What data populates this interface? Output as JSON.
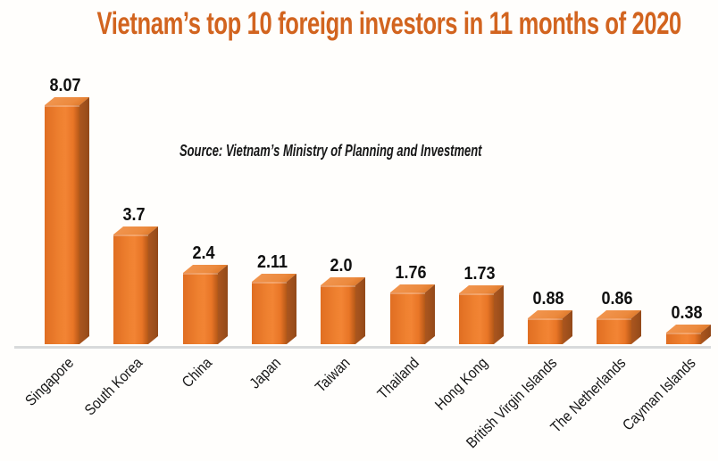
{
  "title": "Vietnam’s top 10 foreign investors in 11 months of 2020",
  "source_note": "Source: Vietnam’s Ministry of Planning and Investment",
  "colors": {
    "title": "#d2641f",
    "bar_front": "#ee7d2b",
    "bar_front_highlight": "#f28434",
    "bar_front_shadow": "#c05e1b",
    "bar_side": "#9d4f1b",
    "bar_top": "#ee8f44",
    "value_label": "#101010",
    "category_label": "#161616",
    "axis_line": "#d8dadb",
    "background": "#fffefc"
  },
  "chart_data": {
    "type": "bar",
    "style": "3d-column",
    "title": "Vietnam’s top 10 foreign investors in 11 months of 2020",
    "source": "Source: Vietnam’s Ministry of Planning and Investment",
    "categories": [
      "Singapore",
      "South Korea",
      "China",
      "Japan",
      "Taiwan",
      "Thailand",
      "Hong Kong",
      "British Virgin Islands",
      "The Netherlands",
      "Cayman Islands"
    ],
    "values": [
      8.07,
      3.7,
      2.4,
      2.11,
      2.0,
      1.76,
      1.73,
      0.88,
      0.86,
      0.38
    ],
    "value_labels": [
      "8.07",
      "3.7",
      "2.4",
      "2.11",
      "2.0",
      "1.76",
      "1.73",
      "0.88",
      "0.86",
      "0.38"
    ],
    "xlabel": "",
    "ylabel": "",
    "ylim": [
      0,
      8.5
    ],
    "grid": false,
    "legend": false,
    "data_labels_position": "above-bar",
    "category_label_rotation_deg": -45
  }
}
